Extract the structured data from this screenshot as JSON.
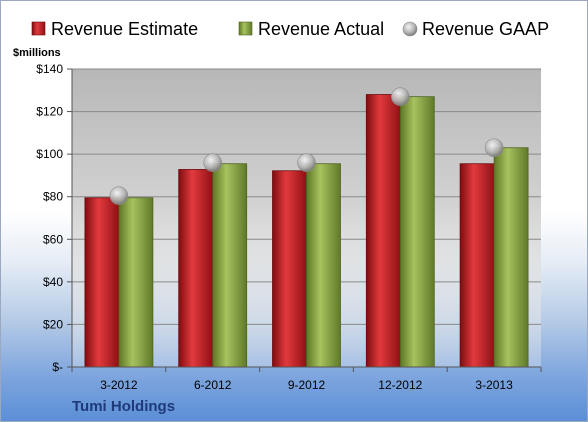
{
  "chart_data": {
    "type": "bar",
    "categories": [
      "3-2012",
      "6-2012",
      "9-2012",
      "12-2012",
      "3-2013"
    ],
    "series": [
      {
        "name": "Revenue Estimate",
        "type": "bar",
        "color": "#c0151b",
        "values": [
          79.5,
          92.8,
          92.2,
          128,
          95.5
        ]
      },
      {
        "name": "Revenue Actual",
        "type": "bar",
        "color": "#86a33d",
        "values": [
          79.5,
          95.5,
          95.5,
          127,
          103
        ]
      },
      {
        "name": "Revenue GAAP",
        "type": "marker",
        "color": "#a0a0a0",
        "values": [
          80.5,
          96,
          96,
          127,
          103
        ]
      }
    ],
    "ylim": [
      0,
      140
    ],
    "yticks": [
      0,
      20,
      40,
      60,
      80,
      100,
      120,
      140
    ],
    "ytick_labels": [
      "$-",
      "$20",
      "$40",
      "$60",
      "$80",
      "$100",
      "$120",
      "$140"
    ],
    "ylabel": "$millions",
    "grid": true,
    "legend_position": "top"
  },
  "footer": {
    "company": "Tumi Holdings"
  }
}
